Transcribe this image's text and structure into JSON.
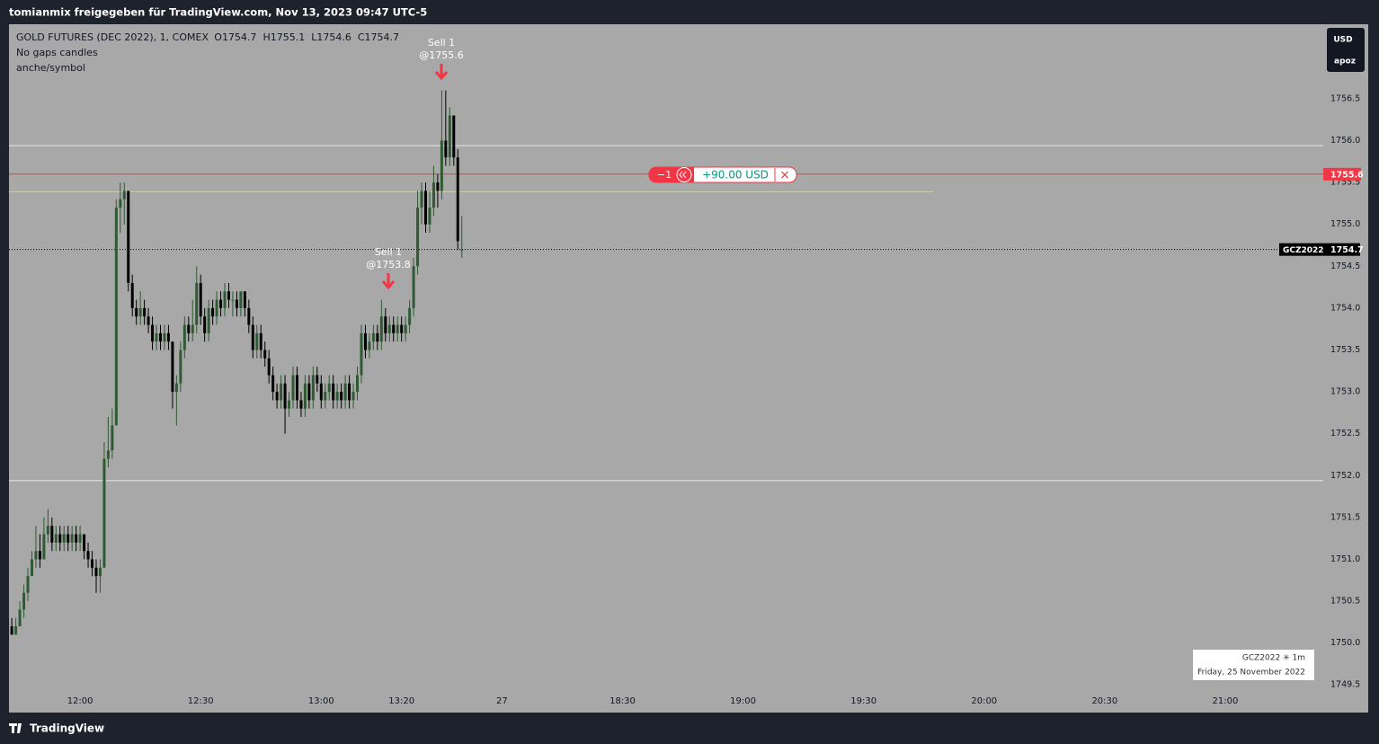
{
  "header": "tomianmix freigegeben für TradingView.com, Nov 13, 2023 09:47 UTC-5",
  "footer": "TradingView",
  "currency_button": "USD",
  "account_button": "apoz",
  "chart_data": {
    "type": "candlestick",
    "legend": {
      "symbol": "GOLD FUTURES (DEC 2022), 1, COMEX",
      "o": "O1754.7",
      "h": "H1755.1",
      "l": "L1754.6",
      "c": "C1754.7",
      "line2": "No gaps candles",
      "line3": "anche/symbol"
    },
    "open": [
      1750.2,
      1750.1,
      1750.2,
      1750.4,
      1750.6,
      1750.8,
      1751.0,
      1751.1,
      1751.0,
      1751.3,
      1751.4,
      1751.2,
      1751.3,
      1751.2,
      1751.3,
      1751.2,
      1751.3,
      1751.2,
      1751.3,
      1751.1,
      1751.0,
      1750.9,
      1750.8,
      1750.9,
      1752.2,
      1752.3,
      1752.6,
      1755.2,
      1755.3,
      1755.4,
      1754.3,
      1754.0,
      1753.9,
      1754.0,
      1753.9,
      1753.8,
      1753.6,
      1753.7,
      1753.6,
      1753.7,
      1753.6,
      1753.0,
      1753.1,
      1753.5,
      1753.8,
      1753.7,
      1753.8,
      1754.3,
      1753.9,
      1753.7,
      1754.0,
      1753.9,
      1754.1,
      1754.0,
      1754.2,
      1754.1,
      1754.1,
      1754.0,
      1754.2,
      1754.0,
      1753.8,
      1753.5,
      1753.7,
      1753.5,
      1753.4,
      1753.2,
      1753.0,
      1752.9,
      1753.1,
      1752.8,
      1752.9,
      1753.2,
      1752.9,
      1752.8,
      1753.1,
      1752.9,
      1753.2,
      1753.1,
      1752.9,
      1753.0,
      1753.1,
      1752.9,
      1753.0,
      1752.9,
      1753.1,
      1752.9,
      1753.0,
      1753.2,
      1753.7,
      1753.5,
      1753.6,
      1753.7,
      1753.6,
      1753.9,
      1753.7,
      1753.8,
      1753.7,
      1753.8,
      1753.7,
      1753.8,
      1754.0,
      1754.5,
      1755.2,
      1755.4,
      1755.0,
      1755.2,
      1755.5,
      1755.4,
      1756.0,
      1755.8,
      1756.3,
      1755.8,
      1754.7
    ],
    "high": [
      1750.3,
      1750.3,
      1750.5,
      1750.7,
      1750.9,
      1751.1,
      1751.4,
      1751.3,
      1751.5,
      1751.6,
      1751.5,
      1751.4,
      1751.4,
      1751.4,
      1751.4,
      1751.4,
      1751.4,
      1751.4,
      1751.3,
      1751.2,
      1751.1,
      1751.0,
      1751.0,
      1752.4,
      1752.7,
      1752.8,
      1755.3,
      1755.5,
      1755.5,
      1755.4,
      1754.4,
      1754.1,
      1754.2,
      1754.1,
      1754.0,
      1753.9,
      1753.8,
      1753.8,
      1753.8,
      1753.8,
      1753.6,
      1753.2,
      1753.6,
      1753.9,
      1753.9,
      1754.1,
      1754.5,
      1754.4,
      1754.0,
      1754.1,
      1754.1,
      1754.2,
      1754.2,
      1754.3,
      1754.3,
      1754.2,
      1754.2,
      1754.2,
      1754.2,
      1754.1,
      1753.9,
      1753.8,
      1753.8,
      1753.6,
      1753.5,
      1753.3,
      1753.1,
      1753.2,
      1753.2,
      1753.0,
      1753.3,
      1753.3,
      1753.0,
      1753.2,
      1753.2,
      1753.3,
      1753.3,
      1753.2,
      1753.1,
      1753.2,
      1753.2,
      1753.1,
      1753.1,
      1753.2,
      1753.2,
      1753.1,
      1753.3,
      1753.8,
      1753.8,
      1753.7,
      1753.8,
      1753.8,
      1754.1,
      1754.0,
      1753.9,
      1753.9,
      1753.9,
      1753.9,
      1753.9,
      1754.1,
      1754.6,
      1755.4,
      1755.5,
      1755.5,
      1755.4,
      1755.7,
      1755.6,
      1756.6,
      1756.6,
      1756.4,
      1756.3,
      1755.9,
      1755.1
    ],
    "low": [
      1750.1,
      1750.1,
      1750.2,
      1750.3,
      1750.5,
      1750.8,
      1750.9,
      1750.9,
      1751.0,
      1751.2,
      1751.1,
      1751.1,
      1751.1,
      1751.1,
      1751.1,
      1751.1,
      1751.1,
      1751.1,
      1751.0,
      1750.9,
      1750.8,
      1750.6,
      1750.6,
      1750.9,
      1752.1,
      1752.2,
      1752.6,
      1754.9,
      1755.0,
      1754.2,
      1753.9,
      1753.8,
      1753.8,
      1753.8,
      1753.7,
      1753.5,
      1753.5,
      1753.5,
      1753.5,
      1753.5,
      1752.8,
      1752.6,
      1753.0,
      1753.4,
      1753.6,
      1753.6,
      1753.7,
      1753.8,
      1753.6,
      1753.6,
      1753.8,
      1753.8,
      1753.9,
      1753.9,
      1754.0,
      1753.9,
      1753.9,
      1753.9,
      1753.9,
      1753.7,
      1753.4,
      1753.4,
      1753.4,
      1753.3,
      1753.1,
      1752.9,
      1752.8,
      1752.8,
      1752.5,
      1752.7,
      1752.8,
      1752.8,
      1752.7,
      1752.7,
      1752.8,
      1752.8,
      1753.0,
      1752.8,
      1752.8,
      1752.9,
      1752.8,
      1752.8,
      1752.8,
      1752.8,
      1752.8,
      1752.8,
      1752.9,
      1753.1,
      1753.4,
      1753.4,
      1753.5,
      1753.5,
      1753.5,
      1753.6,
      1753.6,
      1753.6,
      1753.6,
      1753.6,
      1753.6,
      1753.7,
      1753.9,
      1754.4,
      1755.0,
      1754.9,
      1754.9,
      1755.1,
      1755.2,
      1755.3,
      1755.7,
      1755.7,
      1755.7,
      1754.7,
      1754.6
    ],
    "close": [
      1750.1,
      1750.2,
      1750.4,
      1750.6,
      1750.8,
      1751.0,
      1751.1,
      1751.0,
      1751.3,
      1751.4,
      1751.2,
      1751.3,
      1751.2,
      1751.3,
      1751.2,
      1751.3,
      1751.2,
      1751.3,
      1751.1,
      1751.0,
      1750.9,
      1750.8,
      1750.9,
      1752.2,
      1752.3,
      1752.6,
      1755.2,
      1755.3,
      1755.4,
      1754.3,
      1754.0,
      1753.9,
      1754.0,
      1753.9,
      1753.8,
      1753.6,
      1753.7,
      1753.6,
      1753.7,
      1753.6,
      1753.0,
      1753.1,
      1753.5,
      1753.8,
      1753.7,
      1753.8,
      1754.3,
      1753.9,
      1753.7,
      1754.0,
      1753.9,
      1754.1,
      1754.0,
      1754.2,
      1754.1,
      1754.1,
      1754.0,
      1754.2,
      1754.0,
      1753.8,
      1753.5,
      1753.7,
      1753.5,
      1753.4,
      1753.2,
      1753.0,
      1752.9,
      1753.1,
      1752.8,
      1752.9,
      1753.2,
      1752.9,
      1752.8,
      1753.1,
      1752.9,
      1753.2,
      1753.1,
      1752.9,
      1753.0,
      1753.1,
      1752.9,
      1753.0,
      1752.9,
      1753.1,
      1752.9,
      1753.0,
      1753.2,
      1753.7,
      1753.5,
      1753.6,
      1753.7,
      1753.6,
      1753.9,
      1753.7,
      1753.8,
      1753.7,
      1753.8,
      1753.7,
      1753.8,
      1754.0,
      1754.5,
      1755.2,
      1755.4,
      1755.0,
      1755.2,
      1755.5,
      1755.4,
      1756.0,
      1755.8,
      1756.3,
      1755.8,
      1754.8,
      1754.7
    ],
    "up_color": "#2f5a33",
    "down_color": "#000000",
    "ylim": [
      1749.17,
      1757.39
    ],
    "yticks": [
      {
        "value": 1756.5,
        "label": "1756.5"
      },
      {
        "value": 1756,
        "label": "1756.0"
      },
      1755.5,
      {
        "value": 1755,
        "label": "1755.0"
      },
      1754.5,
      {
        "value": 1754,
        "label": "1754.0"
      },
      1753.5,
      {
        "value": 1753,
        "label": "1753.0"
      },
      1752.5,
      {
        "value": 1752,
        "label": "1752.0"
      },
      1751.5,
      {
        "value": 1751,
        "label": "1751.0"
      },
      1750.5,
      {
        "value": 1750,
        "label": "1750.0"
      },
      1749.5
    ],
    "xlim": [
      -0.7,
      326.4
    ],
    "xticks": [
      {
        "value": 17,
        "label": "12:00"
      },
      {
        "value": 47,
        "label": "12:30"
      },
      {
        "value": 77,
        "label": "13:00"
      },
      {
        "value": 97,
        "label": "13:20"
      },
      {
        "value": 122,
        "label": "27"
      },
      {
        "value": 152,
        "label": "18:30"
      },
      {
        "value": 182,
        "label": "19:00"
      },
      {
        "value": 212,
        "label": "19:30"
      },
      {
        "value": 242,
        "label": "20:00"
      },
      {
        "value": 272,
        "label": "20:30"
      },
      {
        "value": 302,
        "label": "21:00"
      }
    ],
    "hlines": [
      {
        "value": 1755.94,
        "color": "#e8e8e8"
      },
      {
        "value": 1751.94,
        "color": "#e8e8e8"
      }
    ],
    "yellow_line": {
      "value": 1755.39,
      "color": "#f0e000"
    },
    "order": {
      "price": 1755.6,
      "color": "#f23645",
      "qty": "−1",
      "pnl": "+90.00 USD",
      "close": "×"
    },
    "last_price": {
      "value": 1754.7,
      "symbol": "GCZ2022"
    },
    "annotations": [
      {
        "text": "Sell 1",
        "price": "@1755.6"
      },
      {
        "text": "Sell 1",
        "price": "@1753.8"
      }
    ],
    "info_box": {
      "symbol": "GCZ2022 ✳ 1m",
      "date": "Friday, 25 November 2022"
    }
  }
}
